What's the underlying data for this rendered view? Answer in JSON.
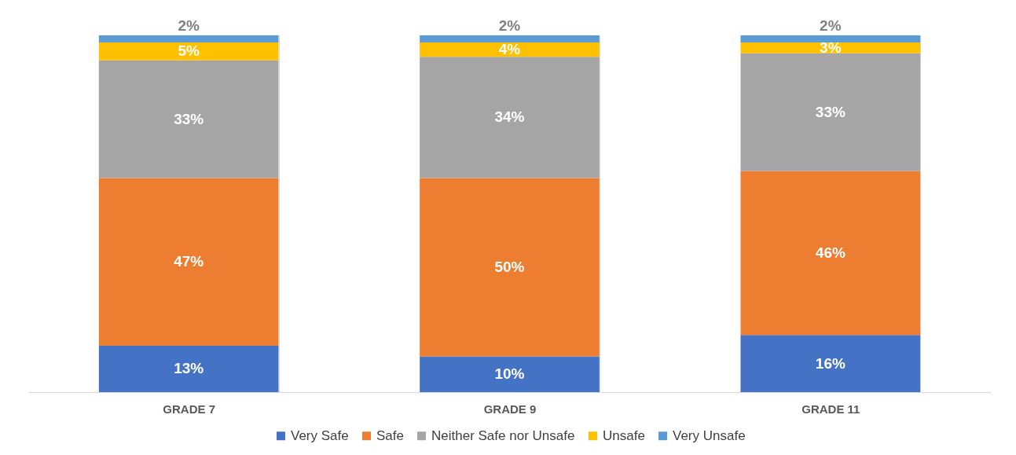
{
  "chart_data": {
    "type": "bar",
    "stacked": true,
    "categories": [
      "GRADE 7",
      "GRADE 9",
      "GRADE 11"
    ],
    "series": [
      {
        "name": "Very Safe",
        "color": "#4472c4",
        "values": [
          13,
          10,
          16
        ],
        "value_labels": [
          "13%",
          "10%",
          "16%"
        ]
      },
      {
        "name": "Safe",
        "color": "#ed7d31",
        "values": [
          47,
          50,
          46
        ],
        "value_labels": [
          "47%",
          "50%",
          "46%"
        ]
      },
      {
        "name": "Neither Safe nor Unsafe",
        "color": "#a5a5a5",
        "values": [
          33,
          34,
          33
        ],
        "value_labels": [
          "33%",
          "34%",
          "33%"
        ]
      },
      {
        "name": "Unsafe",
        "color": "#ffc000",
        "values": [
          5,
          4,
          3
        ],
        "value_labels": [
          "5%",
          "4%",
          "3%"
        ]
      },
      {
        "name": "Very Unsafe",
        "color": "#5b9bd5",
        "values": [
          2,
          2,
          2
        ],
        "value_labels": [
          "2%",
          "2%",
          "2%"
        ]
      }
    ],
    "grid": "x",
    "legend": "bottom"
  }
}
